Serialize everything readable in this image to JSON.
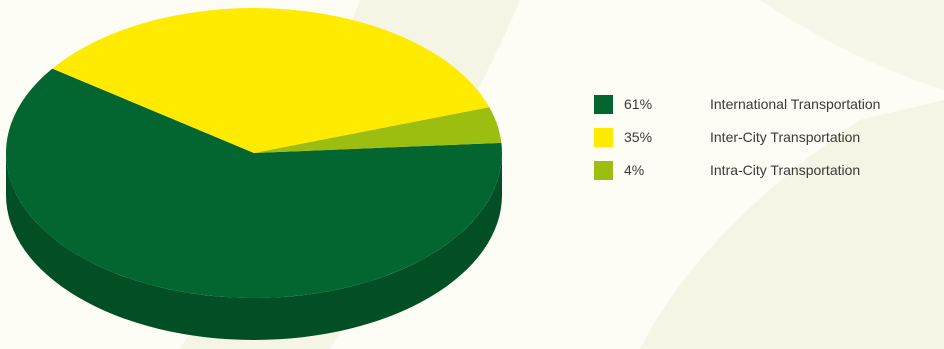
{
  "chart_data": {
    "type": "pie",
    "title": "",
    "slices": [
      {
        "name": "International Transportation",
        "value": 61,
        "label": "61%",
        "color": "#036530"
      },
      {
        "name": "Inter-City Transportation",
        "value": 35,
        "label": "35%",
        "color": "#ffeb00"
      },
      {
        "name": "Intra-City Transportation",
        "value": 4,
        "label": "4%",
        "color": "#9cbe10"
      }
    ],
    "legend_position": "right",
    "style": "3d"
  },
  "legend": {
    "items": [
      {
        "pct": "61%",
        "label": "International Transportation",
        "color": "#036530"
      },
      {
        "pct": "35%",
        "label": "Inter-City Transportation",
        "color": "#ffeb00"
      },
      {
        "pct": "4%",
        "label": "Intra-City Transportation",
        "color": "#9cbe10"
      }
    ]
  },
  "colors": {
    "background": "#fdfdf5",
    "watermark": "#f3f4e2",
    "side_dark": "#024d24"
  }
}
